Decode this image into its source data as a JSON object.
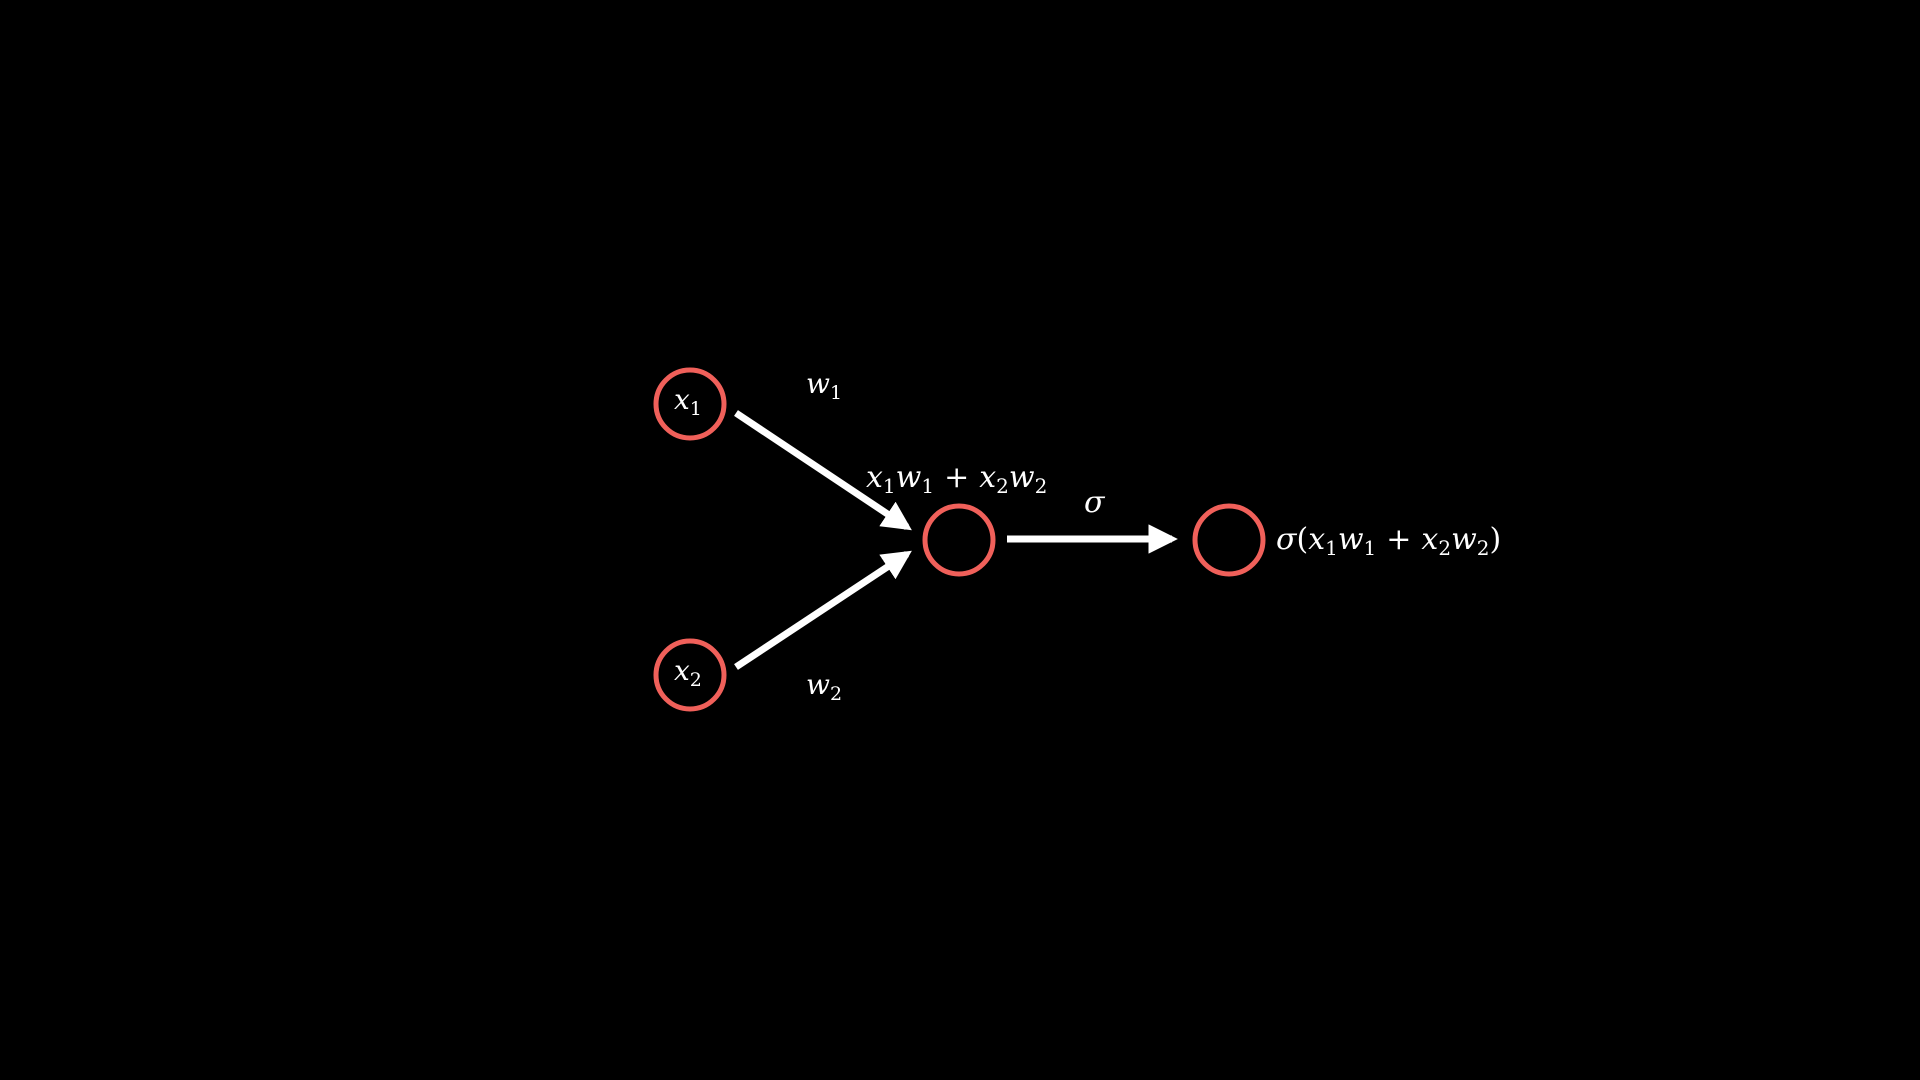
{
  "colors": {
    "background": "#000000",
    "node_stroke": "#f0605a",
    "edge": "#ffffff",
    "text": "#ffffff"
  },
  "nodes": {
    "input_1": {
      "var": "x",
      "sub": "1"
    },
    "input_2": {
      "var": "x",
      "sub": "2"
    }
  },
  "edges": {
    "weight_1": {
      "var": "w",
      "sub": "1"
    },
    "weight_2": {
      "var": "w",
      "sub": "2"
    },
    "activation": "σ"
  },
  "sum_label": {
    "t1_var": "x",
    "t1_sub": "1",
    "t2_var": "w",
    "t2_sub": "1",
    "plus": "+",
    "t3_var": "x",
    "t3_sub": "2",
    "t4_var": "w",
    "t4_sub": "2"
  },
  "output_label": {
    "sigma": "σ",
    "open": "(",
    "t1_var": "x",
    "t1_sub": "1",
    "t2_var": "w",
    "t2_sub": "1",
    "plus": "+",
    "t3_var": "x",
    "t3_sub": "2",
    "t4_var": "w",
    "t4_sub": "2",
    "close": ")"
  }
}
